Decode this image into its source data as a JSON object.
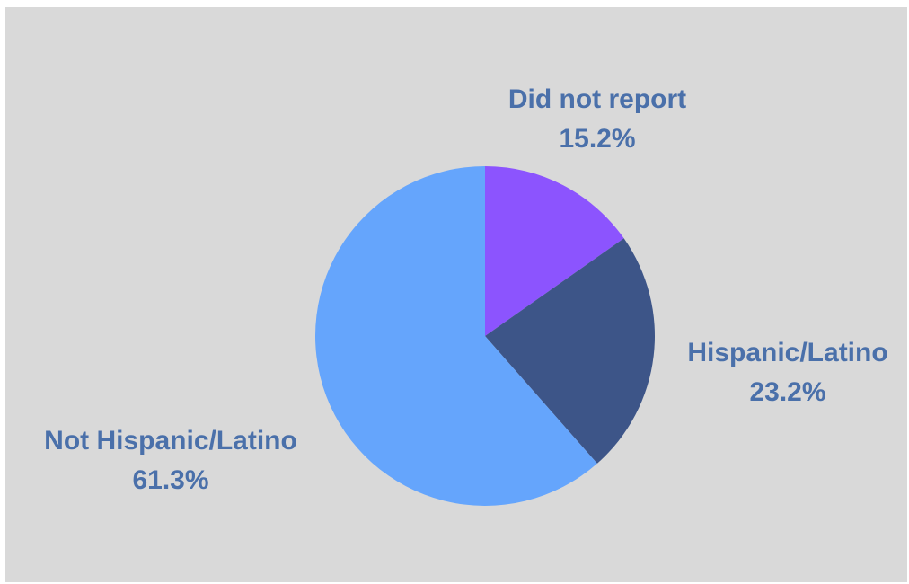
{
  "chart_data": {
    "type": "pie",
    "title": "",
    "slices": [
      {
        "label": "Did not report",
        "value": 15.2,
        "value_label": "15.2%",
        "color": "#8c54fe"
      },
      {
        "label": "Hispanic/Latino",
        "value": 23.2,
        "value_label": "23.2%",
        "color": "#3d5588"
      },
      {
        "label": "Not Hispanic/Latino",
        "value": 61.3,
        "value_label": "61.3%",
        "color": "#65a5fc"
      }
    ],
    "start_angle_deg": 0,
    "direction": "clockwise",
    "legend": "none",
    "label_color": "#4a70aa",
    "background_color": "#d9d9d9"
  }
}
